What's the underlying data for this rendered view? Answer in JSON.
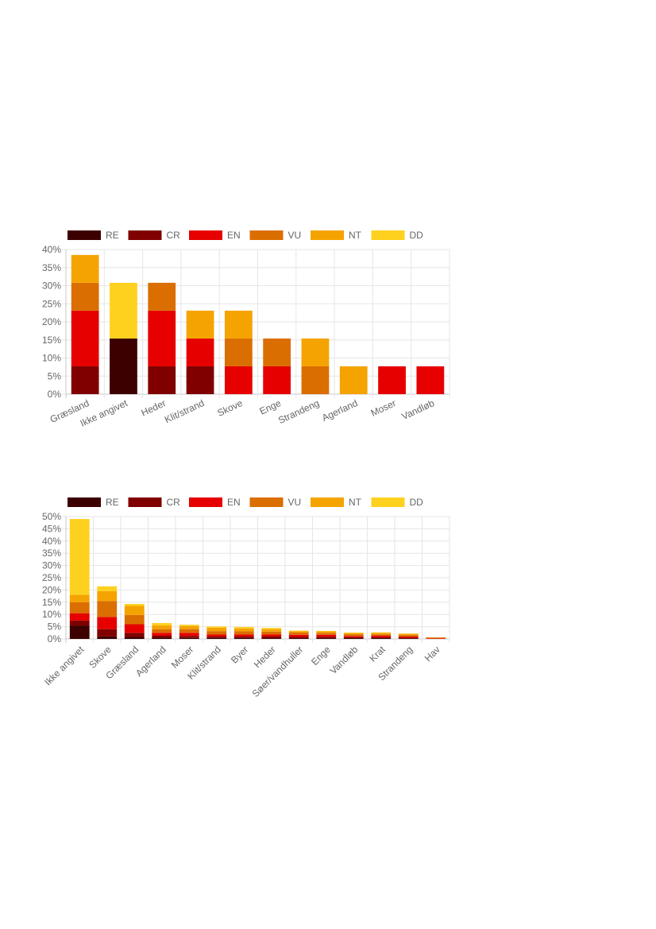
{
  "chart_data": [
    {
      "type": "bar",
      "stacked": true,
      "categories": [
        "Græsland",
        "Ikke angivet",
        "Heder",
        "Klit/strand",
        "Skove",
        "Enge",
        "Strandeng",
        "Agerland",
        "Moser",
        "Vandløb"
      ],
      "series": [
        {
          "name": "RE",
          "color": "#3d0000",
          "values": [
            0,
            15.4,
            0,
            0,
            0,
            0,
            0,
            0,
            0,
            0
          ]
        },
        {
          "name": "CR",
          "color": "#800000",
          "values": [
            7.7,
            0,
            7.7,
            7.7,
            0,
            0,
            0,
            0,
            0,
            0
          ]
        },
        {
          "name": "EN",
          "color": "#e60000",
          "values": [
            15.4,
            0,
            15.4,
            7.7,
            7.7,
            7.7,
            0,
            0,
            7.7,
            7.7
          ]
        },
        {
          "name": "VU",
          "color": "#db6e00",
          "values": [
            7.7,
            0,
            7.7,
            0,
            7.7,
            7.7,
            7.7,
            0,
            0,
            0
          ]
        },
        {
          "name": "NT",
          "color": "#f5a300",
          "values": [
            7.7,
            0,
            0,
            7.7,
            7.7,
            0,
            7.7,
            7.7,
            0,
            0
          ]
        },
        {
          "name": "DD",
          "color": "#ffd11f",
          "values": [
            0,
            15.4,
            0,
            0,
            0,
            0,
            0,
            0,
            0,
            0
          ]
        }
      ],
      "ylim": [
        0,
        40
      ],
      "yticks": [
        "0%",
        "5%",
        "10%",
        "15%",
        "20%",
        "25%",
        "30%",
        "35%",
        "40%"
      ],
      "grid": true,
      "legend": "top-left"
    },
    {
      "type": "bar",
      "stacked": true,
      "categories": [
        "Ikke angivet",
        "Skove",
        "Græsland",
        "Agerland",
        "Moser",
        "Klit/strand",
        "Byer",
        "Heder",
        "Søer/vandhuller",
        "Enge",
        "Vandløb",
        "Krat",
        "Strandeng",
        "Hav"
      ],
      "series": [
        {
          "name": "RE",
          "color": "#3d0000",
          "values": [
            5.5,
            1.0,
            0.8,
            0.5,
            0.4,
            0.4,
            0.4,
            0.3,
            0.3,
            0.3,
            0.3,
            0.3,
            0.2,
            0
          ]
        },
        {
          "name": "CR",
          "color": "#800000",
          "values": [
            2.0,
            3.0,
            1.7,
            0.8,
            0.8,
            0.6,
            0.6,
            0.7,
            0.5,
            0.6,
            0.4,
            0.4,
            0.3,
            0
          ]
        },
        {
          "name": "EN",
          "color": "#e60000",
          "values": [
            3.0,
            5.0,
            3.5,
            1.2,
            1.3,
            0.8,
            0.8,
            0.8,
            0.9,
            0.8,
            0.5,
            0.6,
            0.5,
            0.2
          ]
        },
        {
          "name": "VU",
          "color": "#db6e00",
          "values": [
            4.5,
            6.5,
            3.8,
            1.5,
            1.5,
            1.4,
            1.3,
            1.2,
            0.9,
            0.8,
            0.7,
            0.6,
            0.6,
            0.4
          ]
        },
        {
          "name": "NT",
          "color": "#f5a300",
          "values": [
            3.0,
            4.0,
            3.7,
            1.5,
            1.3,
            1.4,
            1.2,
            1.0,
            0.6,
            0.6,
            0.5,
            0.6,
            0.5,
            0
          ]
        },
        {
          "name": "DD",
          "color": "#ffd11f",
          "values": [
            31.0,
            2.0,
            0.8,
            1.0,
            0.5,
            0.5,
            0.6,
            0.5,
            0.2,
            0.2,
            0.2,
            0.2,
            0.1,
            0
          ]
        }
      ],
      "ylim": [
        0,
        50
      ],
      "yticks": [
        "0%",
        "5%",
        "10%",
        "15%",
        "20%",
        "25%",
        "30%",
        "35%",
        "40%",
        "45%",
        "50%"
      ],
      "grid": true,
      "legend": "top-left"
    }
  ]
}
